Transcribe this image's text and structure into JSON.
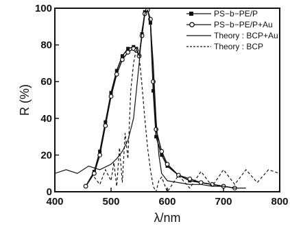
{
  "chart_data": {
    "type": "line",
    "xlabel": "λ/nm",
    "ylabel": "R (%)",
    "xlim": [
      400,
      800
    ],
    "ylim": [
      0,
      100
    ],
    "xticks": [
      "400",
      "500",
      "600",
      "700",
      "800"
    ],
    "yticks": [
      "0",
      "20",
      "40",
      "60",
      "80",
      "100"
    ],
    "grid": false,
    "legend_position": "top-right",
    "series": [
      {
        "name": "PS−b−PE/P",
        "marker": "filled-square",
        "style": "solid",
        "x": [
          455,
          470,
          480,
          490,
          500,
          510,
          520,
          530,
          540,
          545,
          550,
          555,
          560,
          565,
          570,
          575,
          580,
          590,
          600,
          620,
          640,
          660,
          680,
          700
        ],
        "y": [
          3,
          11,
          22,
          38,
          54,
          66,
          74,
          78,
          79,
          78,
          74,
          86,
          98,
          100,
          92,
          55,
          30,
          20,
          14,
          9,
          6,
          5,
          4,
          3
        ]
      },
      {
        "name": "PS−b−PE/P+Au",
        "marker": "open-circle",
        "style": "solid",
        "x": [
          455,
          470,
          480,
          490,
          500,
          510,
          520,
          530,
          540,
          545,
          550,
          555,
          560,
          565,
          570,
          575,
          580,
          590,
          600,
          620,
          640,
          660,
          680,
          700,
          720
        ],
        "y": [
          3,
          10,
          20,
          36,
          52,
          64,
          72,
          76,
          78,
          77,
          74,
          85,
          97,
          99,
          94,
          60,
          34,
          22,
          15,
          9,
          7,
          5,
          4,
          3,
          2
        ]
      },
      {
        "name": "Theory : BCP+Au",
        "marker": "none",
        "style": "solid",
        "x": [
          400,
          420,
          440,
          460,
          480,
          500,
          510,
          520,
          530,
          540,
          550,
          555,
          560,
          565,
          570,
          575,
          580,
          585,
          590,
          600,
          620,
          640,
          660,
          680,
          700,
          720,
          740
        ],
        "y": [
          10,
          12,
          10,
          14,
          12,
          15,
          18,
          22,
          28,
          40,
          70,
          88,
          97,
          99,
          92,
          70,
          40,
          20,
          10,
          6,
          5,
          4,
          4,
          3,
          3,
          2,
          2
        ]
      },
      {
        "name": "Theory : BCP",
        "marker": "none",
        "style": "dashed",
        "x": [
          470,
          480,
          490,
          500,
          505,
          510,
          515,
          520,
          525,
          530,
          535,
          540,
          545,
          550,
          555,
          560,
          565,
          570,
          575,
          580,
          585,
          590,
          600,
          620,
          640,
          660,
          680,
          700,
          720,
          740,
          760,
          780,
          800
        ],
        "y": [
          8,
          4,
          12,
          6,
          16,
          3,
          24,
          5,
          32,
          18,
          55,
          70,
          78,
          74,
          58,
          40,
          24,
          12,
          3,
          0,
          6,
          8,
          0,
          9,
          2,
          11,
          3,
          12,
          4,
          12,
          5,
          12,
          10
        ]
      }
    ]
  }
}
